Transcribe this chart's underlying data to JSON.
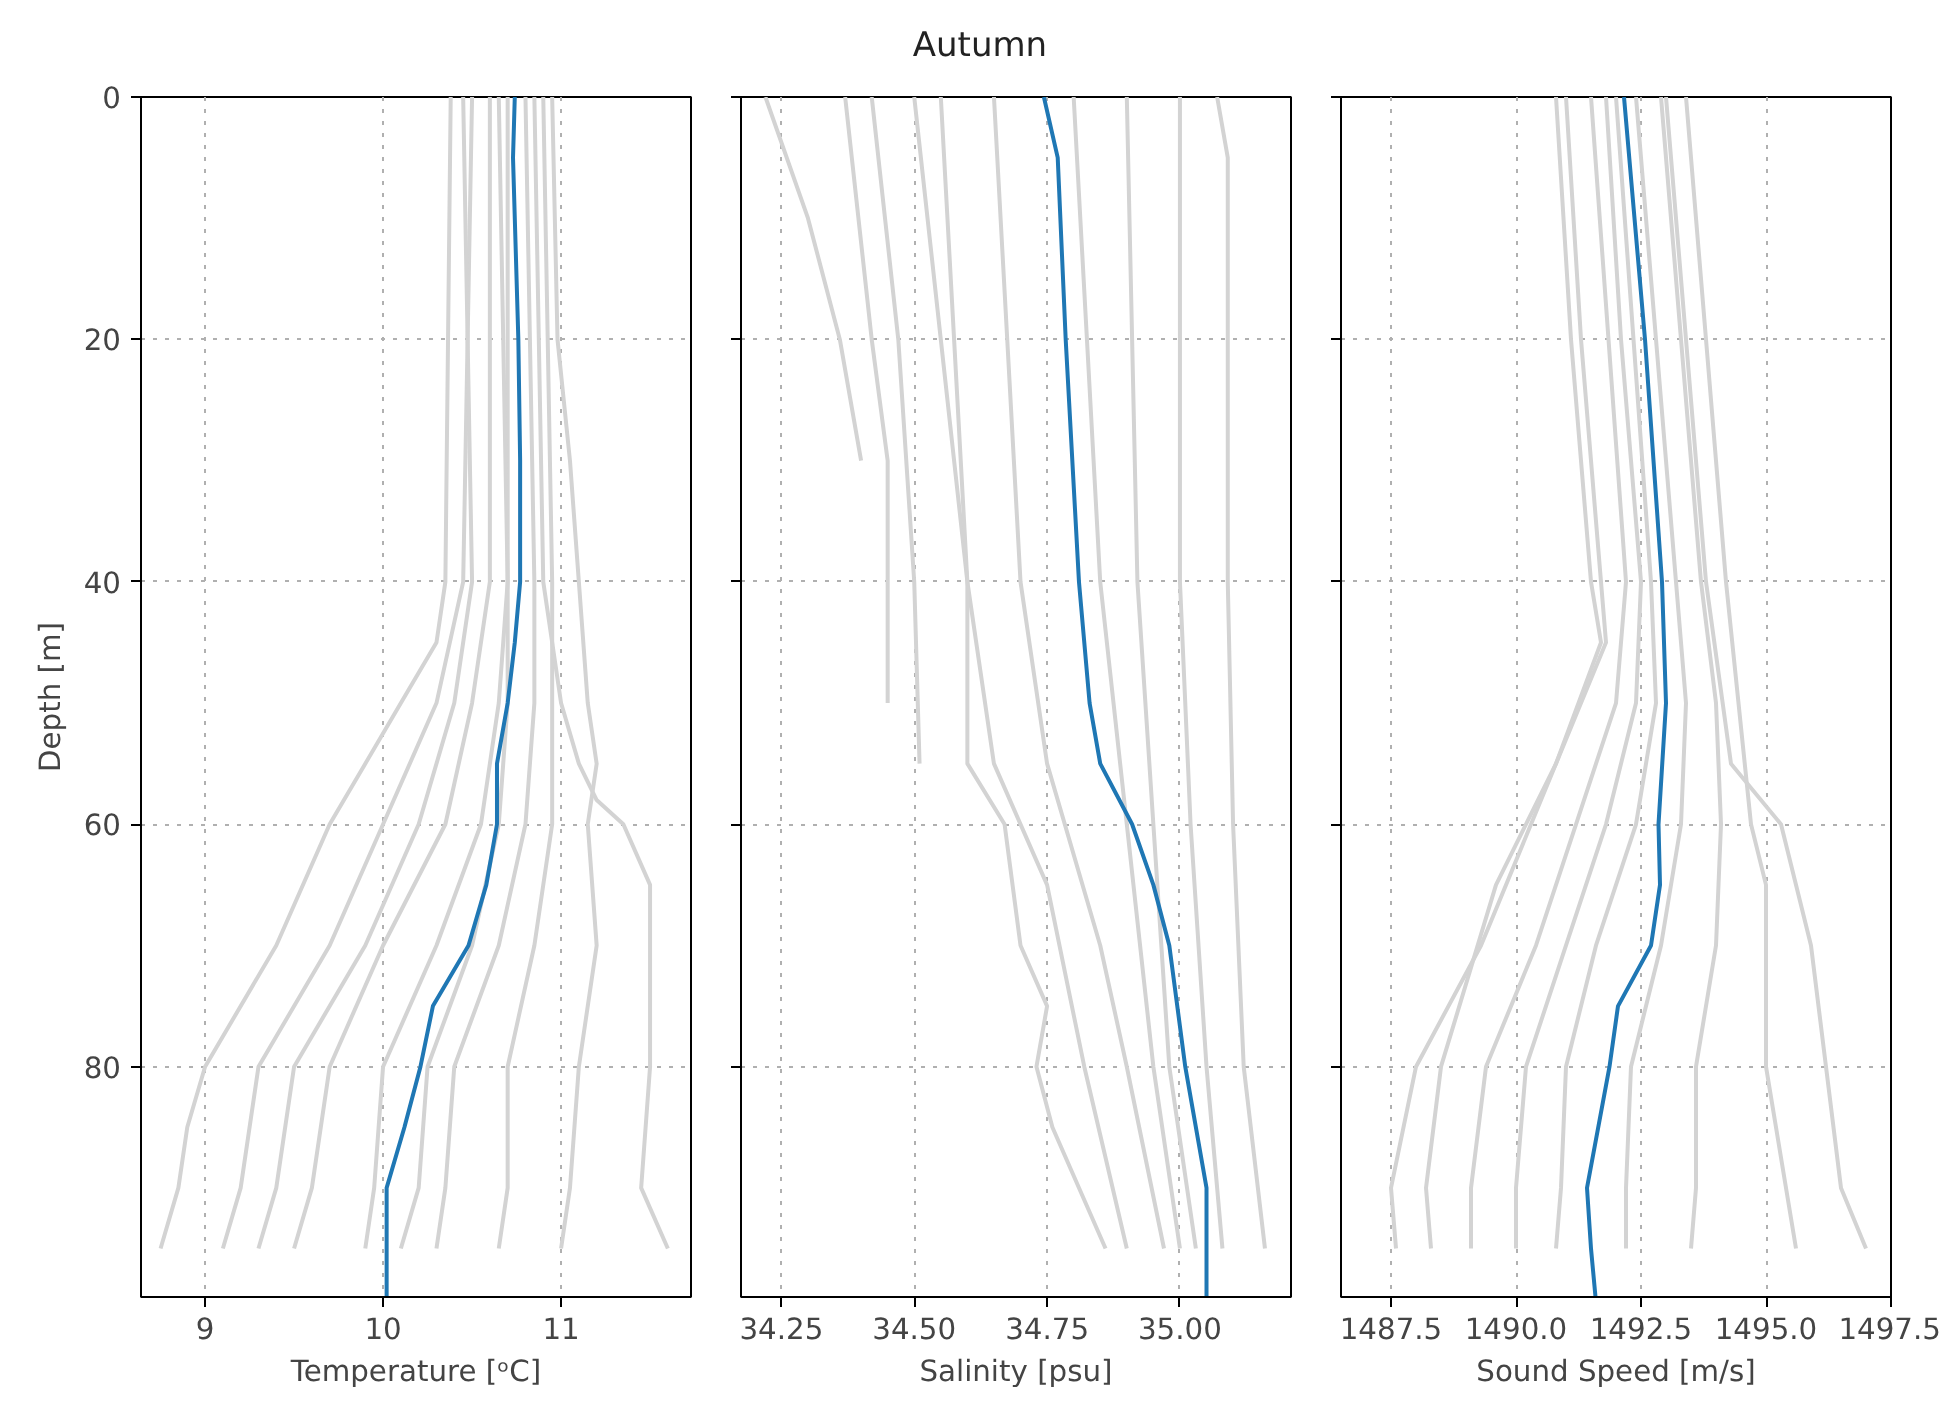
{
  "chart_data": [
    {
      "type": "line",
      "xlabel": "Temperature [ᵒC]",
      "ylabel": "Depth [m]",
      "xlim": [
        8.64,
        11.73
      ],
      "xticks": [
        9,
        10,
        11
      ],
      "ylim": [
        99,
        0
      ],
      "yticks": [
        0,
        20,
        40,
        60,
        80
      ],
      "grid": true,
      "series": [
        {
          "color": "#d3d3d3",
          "x": [
            10.95,
            10.98,
            11.05,
            11.1,
            11.15,
            11.2,
            11.15,
            11.2,
            11.1,
            11.05,
            11.0
          ],
          "values": [
            0,
            20,
            30,
            40,
            50,
            55,
            60,
            70,
            80,
            90,
            95
          ]
        },
        {
          "color": "#d3d3d3",
          "x": [
            10.38,
            10.35,
            10.3,
            10.1,
            9.9,
            9.7,
            9.4,
            9.0,
            8.9,
            8.85,
            8.75
          ],
          "values": [
            0,
            40,
            45,
            50,
            55,
            60,
            70,
            80,
            85,
            90,
            95
          ]
        },
        {
          "color": "#d3d3d3",
          "x": [
            10.5,
            10.45,
            10.3,
            10.0,
            9.7,
            9.3,
            9.2,
            9.1
          ],
          "values": [
            0,
            40,
            50,
            60,
            70,
            80,
            90,
            95
          ]
        },
        {
          "color": "#d3d3d3",
          "x": [
            10.6,
            10.6,
            10.5,
            10.35,
            10.0,
            9.7,
            9.6,
            9.5
          ],
          "values": [
            0,
            40,
            50,
            60,
            70,
            80,
            90,
            95
          ]
        },
        {
          "color": "#d3d3d3",
          "x": [
            10.7,
            10.7,
            10.65,
            10.55,
            10.3,
            10.0,
            9.95,
            9.9
          ],
          "values": [
            0,
            40,
            50,
            60,
            70,
            80,
            90,
            95
          ]
        },
        {
          "color": "#d3d3d3",
          "x": [
            10.8,
            10.85,
            10.85,
            10.8,
            10.65,
            10.4,
            10.35,
            10.3
          ],
          "values": [
            0,
            40,
            50,
            60,
            70,
            80,
            90,
            95
          ]
        },
        {
          "color": "#d3d3d3",
          "x": [
            10.9,
            10.95,
            10.95,
            10.95,
            10.85,
            10.7,
            10.7,
            10.65
          ],
          "values": [
            0,
            40,
            50,
            60,
            70,
            80,
            90,
            95
          ]
        },
        {
          "color": "#d3d3d3",
          "x": [
            10.85,
            10.9,
            11.0,
            11.1,
            11.2,
            11.35,
            11.5,
            11.5,
            11.45,
            11.6
          ],
          "values": [
            0,
            40,
            50,
            55,
            58,
            60,
            65,
            80,
            90,
            95
          ]
        },
        {
          "color": "#d3d3d3",
          "x": [
            10.45,
            10.5,
            10.4,
            10.2,
            9.9,
            9.5,
            9.4,
            9.3
          ],
          "values": [
            0,
            40,
            50,
            60,
            70,
            80,
            90,
            95
          ]
        },
        {
          "color": "#d3d3d3",
          "x": [
            10.65,
            10.7,
            10.7,
            10.65,
            10.5,
            10.25,
            10.2,
            10.1
          ],
          "values": [
            0,
            40,
            50,
            60,
            70,
            80,
            90,
            95
          ]
        },
        {
          "color": "#1f77b4",
          "x": [
            10.74,
            10.73,
            10.76,
            10.77,
            10.77,
            10.74,
            10.7,
            10.64,
            10.64,
            10.58,
            10.48,
            10.28,
            10.21,
            10.12,
            10.02,
            10.02,
            10.02
          ],
          "values": [
            0,
            5,
            20,
            30,
            40,
            45,
            50,
            55,
            60,
            65,
            70,
            75,
            80,
            85,
            90,
            95,
            99
          ]
        }
      ]
    },
    {
      "type": "line",
      "title": "Autumn",
      "xlabel": "Salinity [psu]",
      "xlim": [
        34.174,
        35.209
      ],
      "xticks": [
        34.25,
        {
          "value": 34.5,
          "label": "34.50"
        },
        34.75,
        {
          "value": 35,
          "label": "35.00"
        }
      ],
      "ylim": [
        99,
        0
      ],
      "yticks": [
        0,
        20,
        40,
        60,
        80
      ],
      "grid": true,
      "tick_labels": "x",
      "series": [
        {
          "color": "#d3d3d3",
          "x": [
            35.07,
            35.09,
            35.09,
            35.1,
            35.12,
            35.16
          ],
          "values": [
            0,
            5,
            40,
            60,
            80,
            95
          ]
        },
        {
          "color": "#d3d3d3",
          "x": [
            35.0,
            35.0,
            35.02,
            35.05,
            35.08
          ],
          "values": [
            0,
            40,
            60,
            80,
            95
          ]
        },
        {
          "color": "#d3d3d3",
          "x": [
            34.9,
            34.92,
            34.95,
            34.98,
            35.03
          ],
          "values": [
            0,
            40,
            60,
            80,
            95
          ]
        },
        {
          "color": "#d3d3d3",
          "x": [
            34.65,
            34.7,
            34.75,
            34.85,
            34.9,
            34.97
          ],
          "values": [
            0,
            40,
            55,
            70,
            80,
            95
          ]
        },
        {
          "color": "#d3d3d3",
          "x": [
            34.5,
            34.55,
            34.6,
            34.65,
            34.75,
            34.82,
            34.9
          ],
          "values": [
            0,
            20,
            40,
            55,
            65,
            80,
            95
          ]
        },
        {
          "color": "#d3d3d3",
          "x": [
            34.22,
            34.3,
            34.36,
            34.4
          ],
          "values": [
            0,
            10,
            20,
            30
          ]
        },
        {
          "color": "#d3d3d3",
          "x": [
            34.37,
            34.42,
            34.45,
            34.45,
            34.45
          ],
          "values": [
            0,
            20,
            30,
            45,
            50
          ]
        },
        {
          "color": "#d3d3d3",
          "x": [
            34.42,
            34.47,
            34.5,
            34.51
          ],
          "values": [
            0,
            20,
            40,
            55
          ]
        },
        {
          "color": "#d3d3d3",
          "x": [
            34.55,
            34.6,
            34.6,
            34.67,
            34.7,
            34.75,
            34.73,
            34.76,
            34.86
          ],
          "values": [
            0,
            40,
            55,
            60,
            70,
            75,
            80,
            85,
            95
          ]
        },
        {
          "color": "#d3d3d3",
          "x": [
            34.8,
            34.85,
            34.9,
            34.95,
            35.0
          ],
          "values": [
            0,
            40,
            60,
            80,
            95
          ]
        },
        {
          "color": "#1f77b4",
          "x": [
            34.744,
            34.77,
            34.785,
            34.81,
            34.83,
            34.85,
            34.91,
            34.95,
            34.98,
            35.01,
            35.05,
            35.05
          ],
          "values": [
            0,
            5,
            20,
            40,
            50,
            55,
            60,
            65,
            70,
            80,
            90,
            99
          ]
        }
      ]
    },
    {
      "type": "line",
      "xlabel": "Sound Speed [m/s]",
      "xlim": [
        1486.5,
        1497.5
      ],
      "xticks": [
        1487.5,
        {
          "value": 1490,
          "label": "1490.0"
        },
        1492.5,
        {
          "value": 1495,
          "label": "1495.0"
        },
        1497.5
      ],
      "ylim": [
        99,
        0
      ],
      "yticks": [
        0,
        20,
        40,
        60,
        80
      ],
      "grid": true,
      "tick_labels": "x",
      "series": [
        {
          "color": "#d3d3d3",
          "x": [
            1493.4,
            1493.8,
            1494.2,
            1494.7,
            1495.0,
            1495.0,
            1495.6
          ],
          "values": [
            0,
            20,
            40,
            60,
            65,
            80,
            95
          ]
        },
        {
          "color": "#d3d3d3",
          "x": [
            1493.0,
            1493.8,
            1494.3,
            1495.3,
            1495.9,
            1496.2,
            1496.5,
            1497.0
          ],
          "values": [
            0,
            40,
            55,
            60,
            70,
            80,
            90,
            95
          ]
        },
        {
          "color": "#d3d3d3",
          "x": [
            1491.0,
            1491.3,
            1491.7,
            1491.8,
            1491.3,
            1490.3,
            1489.3,
            1488.0,
            1487.5,
            1487.6
          ],
          "values": [
            0,
            20,
            40,
            45,
            50,
            60,
            70,
            80,
            90,
            95
          ]
        },
        {
          "color": "#d3d3d3",
          "x": [
            1490.8,
            1491.1,
            1491.5,
            1491.7,
            1490.8,
            1489.6,
            1488.5,
            1488.2,
            1488.3
          ],
          "values": [
            0,
            20,
            40,
            45,
            55,
            65,
            80,
            90,
            95
          ]
        },
        {
          "color": "#d3d3d3",
          "x": [
            1491.8,
            1492.1,
            1492.5,
            1492.4,
            1491.8,
            1491.0,
            1490.2,
            1490.0,
            1490.0
          ],
          "values": [
            0,
            20,
            40,
            50,
            60,
            70,
            80,
            90,
            95
          ]
        },
        {
          "color": "#d3d3d3",
          "x": [
            1492.4,
            1492.8,
            1493.2,
            1493.4,
            1493.3,
            1492.9,
            1492.3,
            1492.2,
            1492.2
          ],
          "values": [
            0,
            20,
            40,
            50,
            60,
            70,
            80,
            90,
            95
          ]
        },
        {
          "color": "#d3d3d3",
          "x": [
            1492.9,
            1493.3,
            1493.7,
            1494.0,
            1494.1,
            1494.0,
            1493.6,
            1493.6,
            1493.5
          ],
          "values": [
            0,
            20,
            40,
            50,
            60,
            70,
            80,
            90,
            95
          ]
        },
        {
          "color": "#d3d3d3",
          "x": [
            1492.0,
            1492.7,
            1492.8,
            1492.4,
            1491.6,
            1491.0,
            1490.9,
            1490.8
          ],
          "values": [
            0,
            40,
            50,
            60,
            70,
            80,
            90,
            95
          ]
        },
        {
          "color": "#d3d3d3",
          "x": [
            1491.5,
            1492.2,
            1492.0,
            1491.2,
            1490.4,
            1489.4,
            1489.1,
            1489.1
          ],
          "values": [
            0,
            40,
            50,
            60,
            70,
            80,
            90,
            95
          ]
        },
        {
          "color": "#1f77b4",
          "x": [
            1492.16,
            1492.58,
            1492.92,
            1493.0,
            1492.85,
            1492.88,
            1492.7,
            1492.04,
            1491.87,
            1491.42,
            1491.5,
            1491.59
          ],
          "values": [
            0,
            20,
            40,
            50,
            60,
            65,
            70,
            75,
            80,
            90,
            95,
            99
          ]
        }
      ]
    }
  ]
}
